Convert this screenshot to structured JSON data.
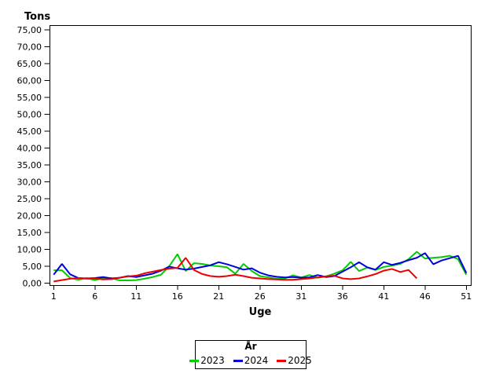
{
  "page": {
    "background": "#ffffff"
  },
  "chart_data": {
    "type": "line",
    "title": "",
    "ylabel": "Tons",
    "xlabel": "Uge",
    "xlim": [
      1,
      51
    ],
    "ylim": [
      0,
      75
    ],
    "grid": false,
    "x_ticks": [
      1,
      6,
      11,
      16,
      21,
      26,
      31,
      36,
      41,
      46,
      51
    ],
    "y_tick_step": 5,
    "y_tick_labels": [
      "0,00",
      "5,00",
      "10,00",
      "15,00",
      "20,00",
      "25,00",
      "30,00",
      "35,00",
      "40,00",
      "45,00",
      "50,00",
      "55,00",
      "60,00",
      "65,00",
      "70,00",
      "75,00"
    ],
    "legend": {
      "title": "År",
      "position": "bottom-center"
    },
    "axis_color": "#000000",
    "series": [
      {
        "name": "2023",
        "color": "#00CC00",
        "start_week": 1,
        "values": [
          3.8,
          3.8,
          1.5,
          1.0,
          1.5,
          0.9,
          1.5,
          1.5,
          0.8,
          0.8,
          0.9,
          1.3,
          1.8,
          2.5,
          5.0,
          8.6,
          3.6,
          5.9,
          5.7,
          5.2,
          5.0,
          4.7,
          2.8,
          5.7,
          3.6,
          2.1,
          1.7,
          1.3,
          1.4,
          2.3,
          1.7,
          2.4,
          1.6,
          2.0,
          2.8,
          3.8,
          6.3,
          3.6,
          4.6,
          3.9,
          4.8,
          5.2,
          5.7,
          7.1,
          9.3,
          7.3,
          7.5,
          7.7,
          8.1,
          7.1,
          2.5
        ]
      },
      {
        "name": "2024",
        "color": "#0000DD",
        "start_week": 1,
        "values": [
          2.5,
          5.7,
          2.6,
          1.5,
          1.4,
          1.5,
          1.8,
          1.4,
          1.6,
          2.1,
          1.8,
          2.3,
          2.8,
          3.7,
          4.9,
          4.4,
          4.0,
          4.3,
          4.8,
          5.3,
          6.2,
          5.6,
          4.8,
          4.0,
          4.4,
          3.1,
          2.3,
          1.9,
          1.7,
          1.8,
          1.6,
          1.7,
          2.4,
          1.8,
          2.1,
          3.4,
          4.7,
          6.2,
          4.7,
          4.0,
          6.2,
          5.4,
          6.0,
          6.8,
          7.5,
          8.9,
          5.6,
          6.7,
          7.4,
          8.1,
          3.0
        ]
      },
      {
        "name": "2025",
        "color": "#EE0000",
        "start_week": 1,
        "values": [
          0.5,
          0.9,
          1.3,
          1.5,
          1.3,
          1.4,
          1.1,
          1.2,
          1.6,
          2.0,
          2.2,
          2.9,
          3.4,
          3.9,
          4.3,
          4.5,
          7.5,
          3.9,
          2.7,
          2.1,
          1.9,
          2.1,
          2.5,
          2.1,
          1.6,
          1.4,
          1.2,
          1.1,
          1.0,
          1.0,
          1.2,
          1.4,
          1.7,
          2.0,
          2.2,
          1.4,
          1.2,
          1.4,
          2.0,
          2.7,
          3.7,
          4.2,
          3.3,
          3.9,
          1.4
        ]
      }
    ]
  }
}
